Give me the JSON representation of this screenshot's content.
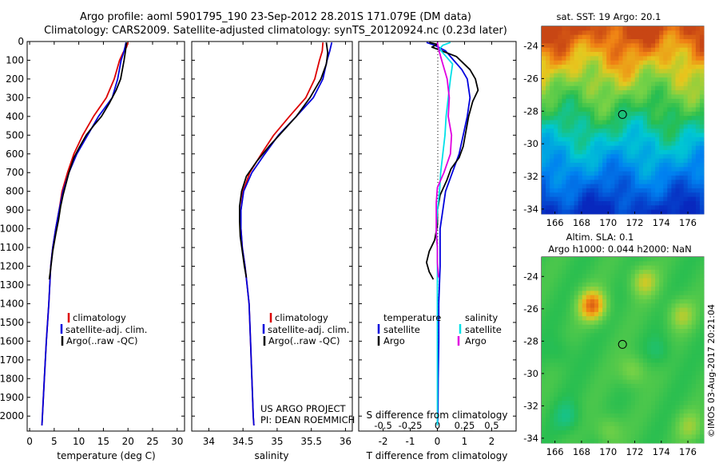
{
  "title": {
    "line1": "Argo profile: aoml 5901795_190 23-Sep-2012 28.201S 171.079E (DM data)",
    "line2": "Climatology: CARS2009. Satellite-adjusted climatology: synTS_20120924.nc (0.23d later)"
  },
  "colors": {
    "climatology": "#dd0000",
    "satellite": "#0000dd",
    "argo": "#000000",
    "satellite_s": "#00e0e8",
    "argo_s": "#e000e0"
  },
  "depth_axis": {
    "ylim": [
      2080,
      0
    ],
    "ticks": [
      0,
      100,
      200,
      300,
      400,
      500,
      600,
      700,
      800,
      900,
      1000,
      1100,
      1200,
      1300,
      1400,
      1500,
      1600,
      1700,
      1800,
      1900,
      2000
    ]
  },
  "chart_data": [
    {
      "type": "line",
      "id": "temperature",
      "xlabel": "temperature (deg C)",
      "xlim": [
        -0.5,
        31.5
      ],
      "xticks": [
        0,
        5,
        10,
        15,
        20,
        25,
        30
      ],
      "legend": [
        "climatology",
        "satellite-adj. clim.",
        "Argo(..raw -QC)"
      ],
      "series": [
        {
          "name": "climatology",
          "color": "#dd0000",
          "points": [
            [
              20.0,
              5
            ],
            [
              19.7,
              30
            ],
            [
              19.0,
              60
            ],
            [
              18.3,
              100
            ],
            [
              17.2,
              200
            ],
            [
              15.6,
              300
            ],
            [
              13.0,
              400
            ],
            [
              10.8,
              500
            ],
            [
              9.0,
              600
            ],
            [
              7.7,
              700
            ],
            [
              6.6,
              800
            ],
            [
              6.0,
              900
            ],
            [
              5.3,
              1000
            ],
            [
              4.7,
              1100
            ],
            [
              4.3,
              1200
            ],
            [
              3.9,
              1400
            ],
            [
              3.4,
              1600
            ],
            [
              3.0,
              1800
            ],
            [
              2.7,
              1950
            ],
            [
              2.5,
              2050
            ]
          ]
        },
        {
          "name": "satellite-adj. clim.",
          "color": "#0000dd",
          "points": [
            [
              19.6,
              5
            ],
            [
              19.4,
              30
            ],
            [
              19.1,
              60
            ],
            [
              18.6,
              100
            ],
            [
              17.9,
              200
            ],
            [
              16.8,
              300
            ],
            [
              14.0,
              400
            ],
            [
              11.8,
              500
            ],
            [
              9.6,
              600
            ],
            [
              8.0,
              700
            ],
            [
              6.8,
              800
            ],
            [
              6.0,
              900
            ],
            [
              5.3,
              1000
            ],
            [
              4.7,
              1100
            ],
            [
              4.3,
              1200
            ],
            [
              3.9,
              1400
            ],
            [
              3.4,
              1600
            ],
            [
              3.0,
              1800
            ],
            [
              2.7,
              1950
            ],
            [
              2.5,
              2050
            ]
          ]
        },
        {
          "name": "Argo(..raw -QC)",
          "color": "#000000",
          "points": [
            [
              19.7,
              5
            ],
            [
              19.5,
              50
            ],
            [
              19.2,
              100
            ],
            [
              18.5,
              200
            ],
            [
              17.6,
              260
            ],
            [
              16.2,
              330
            ],
            [
              14.6,
              400
            ],
            [
              13.0,
              450
            ],
            [
              11.5,
              500
            ],
            [
              10.2,
              560
            ],
            [
              9.0,
              620
            ],
            [
              8.0,
              700
            ],
            [
              7.4,
              760
            ],
            [
              6.8,
              820
            ],
            [
              6.3,
              880
            ],
            [
              5.9,
              950
            ],
            [
              5.3,
              1030
            ],
            [
              4.7,
              1120
            ],
            [
              4.3,
              1210
            ],
            [
              4.0,
              1270
            ]
          ]
        }
      ]
    },
    {
      "type": "line",
      "id": "salinity",
      "xlabel": "salinity",
      "xlim": [
        33.75,
        36.1
      ],
      "xticks": [
        34,
        34.5,
        35,
        35.5,
        36
      ],
      "xticklabels": [
        "34",
        "34.5",
        "35",
        "35.5",
        "36"
      ],
      "legend": [
        "climatology",
        "satellite-adj. clim.",
        "Argo(..raw -QC)"
      ],
      "series": [
        {
          "name": "climatology",
          "color": "#dd0000",
          "points": [
            [
              35.67,
              5
            ],
            [
              35.66,
              50
            ],
            [
              35.62,
              100
            ],
            [
              35.55,
              200
            ],
            [
              35.42,
              300
            ],
            [
              35.18,
              400
            ],
            [
              34.95,
              500
            ],
            [
              34.77,
              600
            ],
            [
              34.6,
              700
            ],
            [
              34.5,
              800
            ],
            [
              34.47,
              900
            ],
            [
              34.47,
              1000
            ],
            [
              34.49,
              1100
            ],
            [
              34.53,
              1200
            ],
            [
              34.56,
              1300
            ],
            [
              34.59,
              1400
            ],
            [
              34.61,
              1600
            ],
            [
              34.63,
              1800
            ],
            [
              34.65,
              2000
            ],
            [
              34.66,
              2050
            ]
          ]
        },
        {
          "name": "satellite-adj. clim.",
          "color": "#0000dd",
          "points": [
            [
              35.8,
              5
            ],
            [
              35.77,
              50
            ],
            [
              35.73,
              100
            ],
            [
              35.67,
              200
            ],
            [
              35.53,
              300
            ],
            [
              35.28,
              400
            ],
            [
              35.02,
              500
            ],
            [
              34.82,
              600
            ],
            [
              34.63,
              700
            ],
            [
              34.51,
              800
            ],
            [
              34.47,
              900
            ],
            [
              34.47,
              1000
            ],
            [
              34.49,
              1100
            ],
            [
              34.53,
              1200
            ],
            [
              34.56,
              1300
            ],
            [
              34.59,
              1400
            ],
            [
              34.61,
              1600
            ],
            [
              34.63,
              1800
            ],
            [
              34.65,
              2000
            ],
            [
              34.66,
              2050
            ]
          ]
        },
        {
          "name": "Argo(..raw -QC)",
          "color": "#000000",
          "points": [
            [
              35.72,
              5
            ],
            [
              35.74,
              60
            ],
            [
              35.72,
              120
            ],
            [
              35.64,
              200
            ],
            [
              35.48,
              300
            ],
            [
              35.28,
              400
            ],
            [
              35.08,
              480
            ],
            [
              34.88,
              560
            ],
            [
              34.7,
              640
            ],
            [
              34.55,
              720
            ],
            [
              34.48,
              800
            ],
            [
              34.45,
              880
            ],
            [
              34.45,
              960
            ],
            [
              34.46,
              1040
            ],
            [
              34.49,
              1120
            ],
            [
              34.52,
              1200
            ],
            [
              34.55,
              1260
            ]
          ]
        }
      ]
    },
    {
      "type": "line",
      "id": "difference",
      "xlabel": "T difference from climatology",
      "xlabel2": "S difference from climatology",
      "xlim": [
        -2.9,
        2.9
      ],
      "xticks": [
        -2,
        -1,
        0,
        1,
        2
      ],
      "sticks": [
        -0.5,
        -0.25,
        0,
        0.25,
        0.5
      ],
      "sticklabels": [
        "-0.5",
        "-0.25",
        "0",
        "0.25",
        "0.5"
      ],
      "legend_titles": [
        "temperature",
        "salinity"
      ],
      "legend": [
        "satellite",
        "Argo",
        "satellite",
        "Argo"
      ],
      "series": [
        {
          "name": "temperature satellite",
          "color": "#0000dd",
          "points": [
            [
              -0.4,
              5
            ],
            [
              -0.1,
              20
            ],
            [
              0.3,
              50
            ],
            [
              0.6,
              100
            ],
            [
              0.9,
              150
            ],
            [
              1.1,
              200
            ],
            [
              1.2,
              300
            ],
            [
              1.1,
              400
            ],
            [
              0.95,
              500
            ],
            [
              0.8,
              600
            ],
            [
              0.55,
              700
            ],
            [
              0.3,
              800
            ],
            [
              0.2,
              900
            ],
            [
              0.1,
              1000
            ],
            [
              0.1,
              1100
            ],
            [
              0.1,
              1200
            ],
            [
              0.05,
              1400
            ],
            [
              0.05,
              1600
            ],
            [
              0.03,
              1800
            ],
            [
              0.02,
              2000
            ],
            [
              0,
              2050
            ]
          ]
        },
        {
          "name": "temperature Argo",
          "color": "#000000",
          "points": [
            [
              -0.3,
              5
            ],
            [
              0.0,
              15
            ],
            [
              -0.2,
              30
            ],
            [
              0.7,
              80
            ],
            [
              1.2,
              150
            ],
            [
              1.4,
              200
            ],
            [
              1.5,
              260
            ],
            [
              1.3,
              320
            ],
            [
              1.15,
              400
            ],
            [
              1.05,
              480
            ],
            [
              0.95,
              560
            ],
            [
              0.8,
              620
            ],
            [
              0.5,
              680
            ],
            [
              0.35,
              740
            ],
            [
              0.1,
              820
            ],
            [
              0.0,
              900
            ],
            [
              0.0,
              980
            ],
            [
              -0.1,
              1060
            ],
            [
              -0.3,
              1120
            ],
            [
              -0.4,
              1180
            ],
            [
              -0.3,
              1230
            ],
            [
              -0.15,
              1270
            ]
          ]
        },
        {
          "name": "salinity satellite",
          "color": "#00e0e8",
          "points": [
            [
              0.12,
              5
            ],
            [
              0.05,
              20
            ],
            [
              0.02,
              40
            ],
            [
              0.08,
              80
            ],
            [
              0.14,
              120
            ],
            [
              0.12,
              200
            ],
            [
              0.1,
              300
            ],
            [
              0.08,
              400
            ],
            [
              0.07,
              500
            ],
            [
              0.05,
              600
            ],
            [
              0.03,
              700
            ],
            [
              0.02,
              800
            ],
            [
              0.0,
              900
            ],
            [
              -0.01,
              1000
            ],
            [
              0.0,
              1100
            ],
            [
              0.0,
              1200
            ],
            [
              0.0,
              1400
            ],
            [
              0.0,
              1600
            ],
            [
              0.0,
              1800
            ],
            [
              0.0,
              2000
            ],
            [
              0.0,
              2050
            ]
          ]
        },
        {
          "name": "salinity Argo",
          "color": "#e000e0",
          "points": [
            [
              0.0,
              5
            ],
            [
              0.01,
              40
            ],
            [
              0.04,
              100
            ],
            [
              0.09,
              200
            ],
            [
              0.11,
              300
            ],
            [
              0.1,
              400
            ],
            [
              0.13,
              500
            ],
            [
              0.12,
              600
            ],
            [
              0.06,
              700
            ],
            [
              0.0,
              780
            ],
            [
              -0.01,
              860
            ],
            [
              -0.01,
              940
            ],
            [
              -0.01,
              1020
            ],
            [
              0.0,
              1100
            ],
            [
              0.0,
              1180
            ],
            [
              0.01,
              1260
            ]
          ]
        }
      ]
    }
  ],
  "credits": {
    "line1": "US ARGO PROJECT",
    "line2": "PI: DEAN ROEMMICH"
  },
  "maps": [
    {
      "id": "sst-map",
      "title": "sat. SST: 19 Argo: 20.1",
      "xticks": [
        166,
        168,
        170,
        172,
        174,
        176
      ],
      "yticks": [
        -24,
        -26,
        -28,
        -30,
        -32,
        -34
      ],
      "lonlim": [
        165.0,
        177.2
      ],
      "latlim": [
        -34.3,
        -22.8
      ],
      "marker": [
        171.079,
        -28.201
      ]
    },
    {
      "id": "sla-map",
      "title": "Altim. SLA: 0.1",
      "subtitle": "Argo h1000: 0.044 h2000: NaN",
      "xticks": [
        166,
        168,
        170,
        172,
        174,
        176
      ],
      "yticks": [
        -24,
        -26,
        -28,
        -30,
        -32,
        -34
      ],
      "lonlim": [
        165.0,
        177.2
      ],
      "latlim": [
        -34.3,
        -22.8
      ],
      "marker": [
        171.079,
        -28.201
      ]
    }
  ],
  "watermark": "©IMOS 03-Aug-2017 20:21:04"
}
